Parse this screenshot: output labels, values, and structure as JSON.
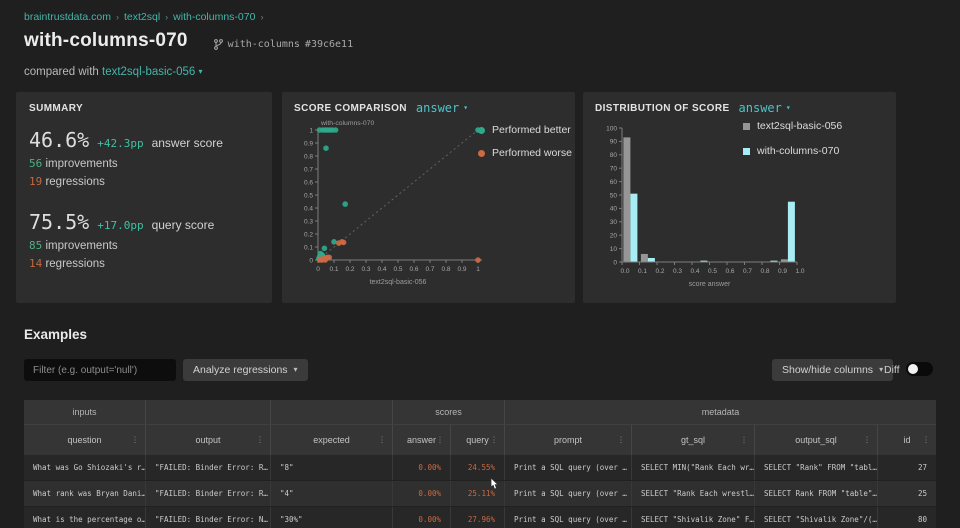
{
  "breadcrumb": {
    "items": [
      "braintrustdata.com",
      "text2sql",
      "with-columns-070"
    ]
  },
  "header": {
    "title": "with-columns-070",
    "branch": "with-columns",
    "commit": "#39c6e11",
    "compared_with_label": "compared with",
    "compared_with": "text2sql-basic-056"
  },
  "summary": {
    "title": "SUMMARY",
    "metrics": [
      {
        "value": "46.6%",
        "delta": "+42.3pp",
        "label": "answer score",
        "improvements": "56",
        "improvements_label": "improvements",
        "regressions": "19",
        "regressions_label": "regressions"
      },
      {
        "value": "75.5%",
        "delta": "+17.0pp",
        "label": "query score",
        "improvements": "85",
        "improvements_label": "improvements",
        "regressions": "14",
        "regressions_label": "regressions"
      }
    ]
  },
  "score_comparison": {
    "title": "SCORE COMPARISON",
    "selector": "answer"
  },
  "distribution": {
    "title": "DISTRIBUTION OF SCORE",
    "selector": "answer"
  },
  "colors": {
    "accent_teal": "#45b5ab",
    "delta_teal": "#3fc1a2",
    "improvement_green": "#4db183",
    "regression_orange": "#c5673f",
    "score_orange": "#c96a45",
    "better_dot": "#2fa98c",
    "worse_dot": "#cc6a44",
    "hist_gray": "#969696",
    "hist_cyan": "#a7edf3"
  },
  "chart_data": [
    {
      "type": "scatter",
      "title": "SCORE COMPARISON (answer)",
      "xlabel": "text2sql-basic-056",
      "ylabel": "with-columns-070",
      "xlim": [
        0,
        1
      ],
      "ylim": [
        0,
        1
      ],
      "xticks": [
        0,
        0.1,
        0.2,
        0.3,
        0.4,
        0.5,
        0.6,
        0.7,
        0.8,
        0.9,
        1
      ],
      "yticks": [
        0,
        0.1,
        0.2,
        0.3,
        0.4,
        0.5,
        0.6,
        0.7,
        0.8,
        0.9,
        1
      ],
      "diagonal": true,
      "legend_position": "right",
      "series": [
        {
          "name": "Performed better",
          "color": "#2fa98c",
          "points": [
            [
              0.01,
              1
            ],
            [
              0.03,
              1
            ],
            [
              0.045,
              1
            ],
            [
              0.06,
              1
            ],
            [
              0.075,
              1
            ],
            [
              0.09,
              1
            ],
            [
              0.11,
              1
            ],
            [
              1,
              1
            ],
            [
              0.05,
              0.86
            ],
            [
              0.17,
              0.43
            ],
            [
              0.1,
              0.14
            ],
            [
              0.04,
              0.09
            ],
            [
              0.015,
              0.05
            ],
            [
              0.025,
              0.04
            ],
            [
              0.01,
              0.025
            ],
            [
              0.03,
              0.03
            ],
            [
              0.005,
              0.01
            ]
          ]
        },
        {
          "name": "Performed worse",
          "color": "#cc6a44",
          "points": [
            [
              0.13,
              0.13
            ],
            [
              0.15,
              0.14
            ],
            [
              0.16,
              0.135
            ],
            [
              1,
              0
            ],
            [
              0.01,
              0
            ],
            [
              0.02,
              0.005
            ],
            [
              0.035,
              0.01
            ],
            [
              0.05,
              0.015
            ],
            [
              0.06,
              0.02
            ],
            [
              0.045,
              0
            ],
            [
              0.07,
              0.02
            ],
            [
              0.025,
              0
            ]
          ]
        }
      ]
    },
    {
      "type": "bar",
      "title": "DISTRIBUTION OF SCORE (answer)",
      "xlabel": "score answer",
      "ylabel": "",
      "ylim": [
        0,
        100
      ],
      "ytick_step": 10,
      "bin_edges": [
        "0.0",
        "0.1",
        "0.2",
        "0.3",
        "0.4",
        "0.5",
        "0.6",
        "0.7",
        "0.8",
        "0.9",
        "1.0"
      ],
      "legend_position": "right",
      "series": [
        {
          "name": "text2sql-basic-056",
          "color": "#969696",
          "values": [
            93,
            6,
            0,
            0,
            0,
            0,
            0,
            0,
            0,
            2
          ]
        },
        {
          "name": "with-columns-070",
          "color": "#a7edf3",
          "values": [
            51,
            3,
            0,
            0,
            1,
            0,
            0,
            0,
            1,
            45
          ]
        }
      ]
    }
  ],
  "examples": {
    "title": "Examples",
    "filter_placeholder": "Filter (e.g. output='null')",
    "analyze_button": "Analyze regressions",
    "show_hide_button": "Show/hide columns",
    "diff_label": "Diff",
    "diff_on": false
  },
  "table": {
    "groups": [
      {
        "label": "inputs"
      },
      {
        "label": ""
      },
      {
        "label": ""
      },
      {
        "label": "scores"
      },
      {
        "label": "metadata"
      }
    ],
    "columns": [
      "question",
      "output",
      "expected",
      "answer",
      "query",
      "prompt",
      "gt_sql",
      "output_sql",
      "id"
    ],
    "rows": [
      [
        "What was Go Shiozaki's r…",
        "\"FAILED: Binder Error: R…",
        "\"8\"",
        "0.00%",
        "24.55%",
        "Print a SQL query (over …",
        "SELECT MIN(\"Rank Each wr…",
        "SELECT \"Rank\" FROM \"tabl…",
        "27"
      ],
      [
        "What rank was Bryan Dani…",
        "\"FAILED: Binder Error: R…",
        "\"4\"",
        "0.00%",
        "25.11%",
        "Print a SQL query (over …",
        "SELECT \"Rank Each wrestl…",
        "SELECT Rank FROM \"table\"…",
        "25"
      ],
      [
        "What is the percentage o…",
        "\"FAILED: Binder Error: N…",
        "\"30%\"",
        "0.00%",
        "27.96%",
        "Print a SQL query (over …",
        "SELECT \"Shivalik Zone\" F…",
        "SELECT \"Shivalik Zone\"/(…",
        "80"
      ]
    ]
  }
}
